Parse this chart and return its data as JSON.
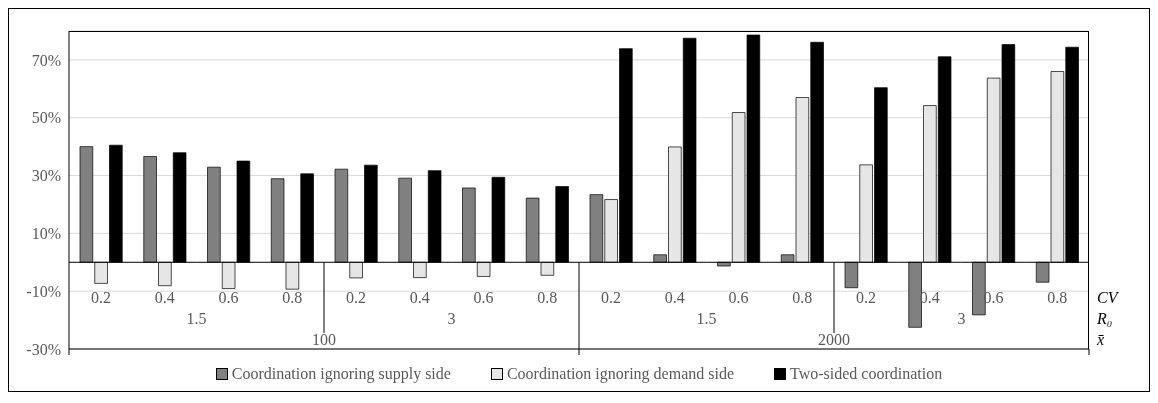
{
  "chart_data": {
    "type": "bar",
    "categories": [
      "0.2",
      "0.4",
      "0.6",
      "0.8",
      "0.2",
      "0.4",
      "0.6",
      "0.8",
      "0.2",
      "0.4",
      "0.6",
      "0.8",
      "0.2",
      "0.4",
      "0.6",
      "0.8"
    ],
    "series": [
      {
        "name": "Coordination ignoring supply side",
        "color": "#808080",
        "values": [
          40.0,
          36.6,
          32.9,
          28.9,
          32.2,
          29.1,
          25.7,
          22.2,
          23.4,
          2.6,
          -1.3,
          2.6,
          -8.8,
          -22.5,
          -18.2,
          -6.9
        ]
      },
      {
        "name": "Coordination ignoring demand side",
        "color": "#e6e6e6",
        "values": [
          -7.3,
          -8.1,
          -9.1,
          -9.3,
          -5.4,
          -5.3,
          -4.9,
          -4.5,
          21.7,
          39.9,
          51.8,
          57.0,
          33.7,
          54.2,
          63.7,
          66.0
        ]
      },
      {
        "name": "Two-sided coordination",
        "color": "#000000",
        "values": [
          40.5,
          37.9,
          35.0,
          30.6,
          33.6,
          31.7,
          29.4,
          26.2,
          73.9,
          77.5,
          78.6,
          76.1,
          60.4,
          71.1,
          75.3,
          74.4
        ]
      }
    ],
    "ylim": [
      -30,
      80
    ],
    "yticks": [
      {
        "value": -30,
        "label": "-30%"
      },
      {
        "value": -10,
        "label": "-10%"
      },
      {
        "value": 10,
        "label": "10%"
      },
      {
        "value": 30,
        "label": "30%"
      },
      {
        "value": 50,
        "label": "50%"
      },
      {
        "value": 70,
        "label": "70%"
      }
    ],
    "grid": "y",
    "legend": "bottom",
    "annotations": [
      "1.5",
      "3",
      "1.5",
      "3",
      "100",
      "2000",
      "CV",
      "R₀",
      "x̄"
    ]
  }
}
